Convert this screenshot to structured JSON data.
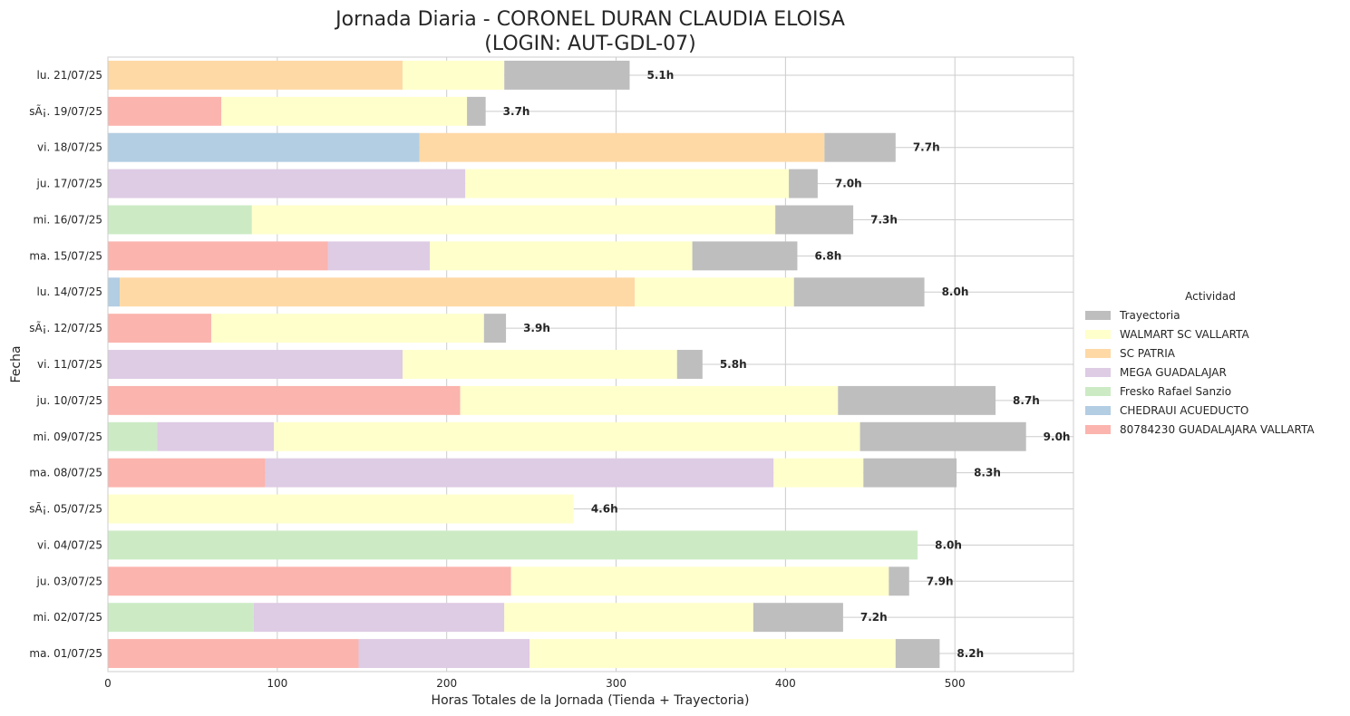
{
  "chart_data": {
    "type": "bar",
    "orientation": "horizontal",
    "stacked": true,
    "title": "Jornada Diaria - CORONEL DURAN CLAUDIA ELOISA",
    "subtitle": "(LOGIN: AUT-GDL-07)",
    "xlabel": "Horas Totales de la Jornada (Tienda + Trayectoria)",
    "ylabel": "Fecha",
    "xlim": [
      0,
      570
    ],
    "xticks": [
      0,
      100,
      200,
      300,
      400,
      500
    ],
    "grid": true,
    "legend": {
      "title": "Actividad",
      "placement": "right"
    },
    "categories": [
      "lu. 21/07/25",
      "sÃ¡. 19/07/25",
      "vi. 18/07/25",
      "ju. 17/07/25",
      "mi. 16/07/25",
      "ma. 15/07/25",
      "lu. 14/07/25",
      "sÃ¡. 12/07/25",
      "vi. 11/07/25",
      "ju. 10/07/25",
      "mi. 09/07/25",
      "ma. 08/07/25",
      "sÃ¡. 05/07/25",
      "vi. 04/07/25",
      "ju. 03/07/25",
      "mi. 02/07/25",
      "ma. 01/07/25"
    ],
    "series": [
      {
        "name": "80784230 GUADALAJARA VALLARTA",
        "color": "#FBB4AE",
        "values": [
          0,
          67,
          0,
          0,
          0,
          130,
          0,
          61,
          0,
          208,
          0,
          93,
          0,
          0,
          238,
          0,
          148
        ]
      },
      {
        "name": "CHEDRAUI ACUEDUCTO",
        "color": "#B3CDE3",
        "values": [
          0,
          0,
          184,
          0,
          0,
          0,
          7,
          0,
          0,
          0,
          0,
          0,
          0,
          0,
          0,
          0,
          0
        ]
      },
      {
        "name": "Fresko Rafael Sanzio",
        "color": "#CCEBC5",
        "values": [
          0,
          0,
          0,
          0,
          85,
          0,
          0,
          0,
          0,
          0,
          29,
          0,
          0,
          478,
          0,
          86,
          0
        ]
      },
      {
        "name": "MEGA GUADALAJAR",
        "color": "#DECBE4",
        "values": [
          0,
          0,
          0,
          211,
          0,
          60,
          0,
          0,
          174,
          0,
          69,
          300,
          0,
          0,
          0,
          148,
          101
        ]
      },
      {
        "name": "SC PATRIA",
        "color": "#FED9A6",
        "values": [
          174,
          0,
          239,
          0,
          0,
          0,
          304,
          0,
          0,
          0,
          0,
          0,
          0,
          0,
          0,
          0,
          0
        ]
      },
      {
        "name": "WALMART SC VALLARTA",
        "color": "#FFFFCC",
        "values": [
          60,
          145,
          0,
          191,
          309,
          155,
          94,
          161,
          162,
          223,
          346,
          53,
          275,
          0,
          223,
          147,
          216
        ]
      },
      {
        "name": "Trayectoria",
        "color": "#BEBEBE",
        "values": [
          74,
          11,
          42,
          17,
          46,
          62,
          77,
          13,
          15,
          93,
          98,
          55,
          0,
          0,
          12,
          53,
          26
        ]
      }
    ],
    "totals_labels": [
      "5.1h",
      "3.7h",
      "7.7h",
      "7.0h",
      "7.3h",
      "6.8h",
      "8.0h",
      "3.9h",
      "5.8h",
      "8.7h",
      "9.0h",
      "8.3h",
      "4.6h",
      "8.0h",
      "7.9h",
      "7.2h",
      "8.2h"
    ],
    "legend_order": [
      "Trayectoria",
      "WALMART SC VALLARTA",
      "SC PATRIA",
      "MEGA GUADALAJAR",
      "Fresko Rafael Sanzio",
      "CHEDRAUI ACUEDUCTO",
      "80784230 GUADALAJARA VALLARTA"
    ]
  }
}
